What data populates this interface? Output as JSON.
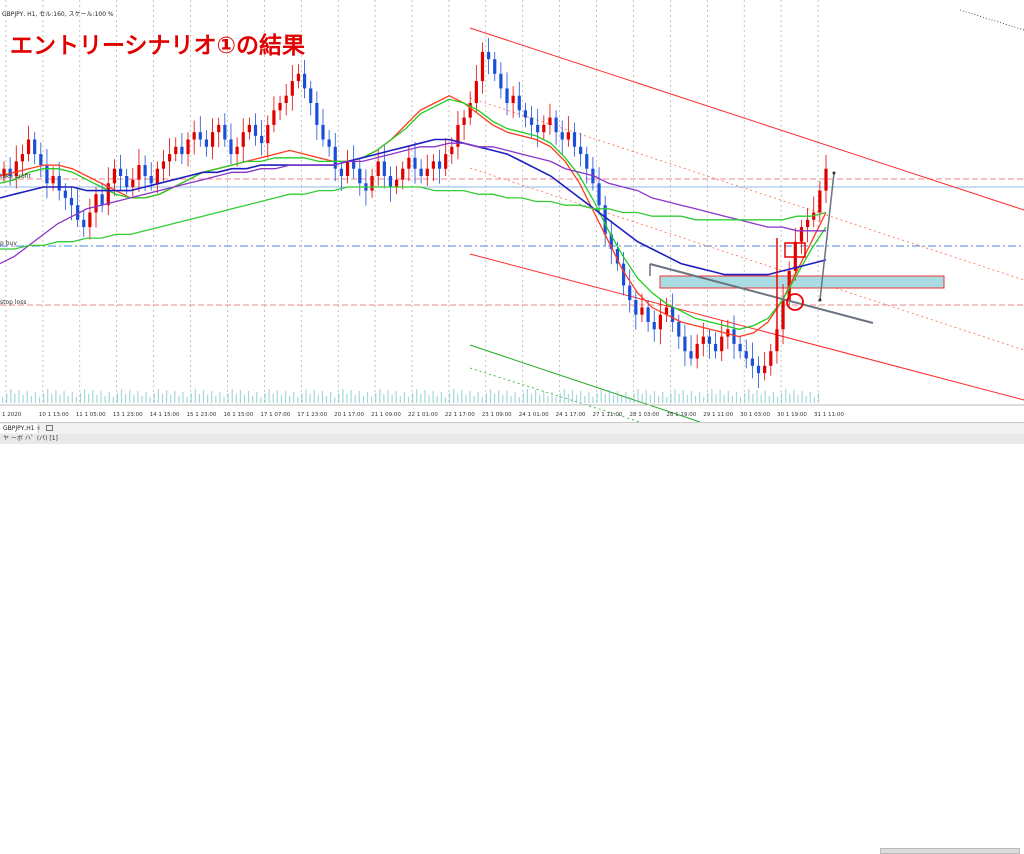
{
  "header": {
    "text": "GBPJPY, H1, セル:160, スケール:100 %"
  },
  "title": "エントリーシナリオ①の結果",
  "levels": {
    "take_profit": "take profit",
    "entry": "p buy",
    "stop_loss": "stop loss"
  },
  "tab": {
    "label": "GBPJPY,H1",
    "close": "×"
  },
  "status": {
    "text": "ヤ ーボ ハ゜(パ) [1]"
  },
  "colors": {
    "bull": "#e00000",
    "bear": "#1a4fd8",
    "ma_fast": "#ff3b1f",
    "ma_mid": "#22cc22",
    "ma_slow": "#1f1fbf",
    "ma_slower": "#8a35c8",
    "ma_long": "#33cc33",
    "channel": "#ff2a2a",
    "zone_fill": "#a9dde3",
    "zone_border": "#e33",
    "trendline": "#6b7280",
    "level_line": "#e88",
    "hline": "#4a8ad8"
  },
  "chart_data": {
    "type": "candlestick",
    "title": "エントリーシナリオ①の結果",
    "symbol": "GBPJPY",
    "timeframe": "H1",
    "x_ticks": [
      "1 2020",
      "10 1 13:00",
      "11 1 05:00",
      "13 1 23:00",
      "14 1 15:00",
      "15 1 23:00",
      "16 1 15:00",
      "17 1 07:00",
      "17 1 23:00",
      "20 1 17:00",
      "21 1 09:00",
      "22 1 01:00",
      "22 1 17:00",
      "23 1 09:00",
      "24 1 01:00",
      "24 1 17:00",
      "27 1 11:00",
      "28 1 03:00",
      "28 1 19:00",
      "29 1 11:00",
      "30 1 03:00",
      "30 1 19:00",
      "31 1 11:00"
    ],
    "y_range_relative": [
      0,
      100
    ],
    "candles_close_relative": [
      62,
      60,
      64,
      66,
      70,
      66,
      63,
      58,
      60,
      56,
      54,
      52,
      48,
      46,
      50,
      55,
      52,
      58,
      62,
      60,
      57,
      59,
      63,
      60,
      58,
      62,
      64,
      66,
      68,
      66,
      70,
      72,
      70,
      68,
      72,
      74,
      70,
      66,
      68,
      72,
      74,
      71,
      69,
      74,
      78,
      80,
      82,
      86,
      88,
      84,
      80,
      74,
      70,
      68,
      62,
      60,
      64,
      62,
      58,
      56,
      60,
      64,
      60,
      57,
      59,
      62,
      65,
      62,
      60,
      62,
      64,
      62,
      66,
      68,
      74,
      76,
      80,
      86,
      94,
      92,
      88,
      84,
      80,
      82,
      78,
      76,
      74,
      72,
      74,
      76,
      72,
      70,
      72,
      68,
      66,
      62,
      58,
      52,
      44,
      40,
      36,
      30,
      26,
      22,
      24,
      20,
      18,
      22,
      24,
      20,
      16,
      12,
      10,
      14,
      16,
      14,
      12,
      16,
      18,
      14,
      12,
      10,
      8,
      6,
      8,
      12,
      18,
      26,
      34,
      42,
      46,
      48,
      50,
      56,
      62
    ],
    "moving_averages": [
      {
        "id": "ma_fast",
        "values": [
          60,
          61,
          62,
          63,
          63,
          62,
          60,
          58,
          56,
          54,
          54,
          55,
          57,
          59,
          61,
          62,
          63,
          64,
          65,
          66,
          67,
          66,
          65,
          64,
          64,
          65,
          67,
          70,
          74,
          78,
          80,
          82,
          80,
          77,
          74,
          72,
          71,
          70,
          68,
          64,
          58,
          50,
          42,
          34,
          28,
          24,
          22,
          20,
          19,
          18,
          17,
          16,
          17,
          20,
          26,
          34,
          42,
          50
        ]
      },
      {
        "id": "ma_mid",
        "values": [
          58,
          59,
          61,
          62,
          62,
          61,
          59,
          57,
          55,
          54,
          54,
          55,
          57,
          59,
          61,
          62,
          63,
          64,
          64,
          65,
          65,
          65,
          64,
          64,
          64,
          65,
          67,
          70,
          73,
          77,
          79,
          81,
          80,
          78,
          75,
          73,
          72,
          71,
          69,
          65,
          60,
          53,
          45,
          38,
          32,
          28,
          25,
          23,
          21,
          20,
          19,
          18,
          19,
          21,
          26,
          33,
          40,
          46
        ]
      },
      {
        "id": "ma_slow",
        "values": [
          54,
          55,
          56,
          57,
          57,
          57,
          56,
          56,
          56,
          56,
          57,
          58,
          59,
          60,
          61,
          61,
          62,
          62,
          63,
          63,
          63,
          63,
          63,
          63,
          64,
          65,
          66,
          67,
          68,
          69,
          70,
          70,
          69,
          68,
          67,
          66,
          64,
          62,
          60,
          57,
          54,
          51,
          48,
          45,
          42,
          40,
          38,
          36,
          35,
          34,
          33,
          33,
          33,
          33,
          34,
          35,
          36,
          37
        ]
      },
      {
        "id": "ma_slower",
        "values": [
          36,
          38,
          41,
          44,
          47,
          49,
          51,
          52,
          53,
          54,
          55,
          56,
          57,
          58,
          59,
          60,
          61,
          61,
          62,
          62,
          63,
          63,
          63,
          63,
          64,
          64,
          65,
          66,
          67,
          68,
          68,
          69,
          69,
          68,
          68,
          67,
          66,
          65,
          64,
          62,
          61,
          60,
          58,
          57,
          56,
          54,
          53,
          52,
          51,
          50,
          49,
          48,
          47,
          46,
          46,
          45,
          45,
          45
        ]
      },
      {
        "id": "ma_long",
        "values": [
          40,
          40,
          41,
          41,
          42,
          42,
          43,
          43,
          44,
          44,
          45,
          46,
          47,
          48,
          49,
          50,
          51,
          52,
          53,
          54,
          55,
          55,
          56,
          56,
          57,
          57,
          57,
          57,
          57,
          57,
          56,
          56,
          56,
          55,
          55,
          54,
          54,
          53,
          53,
          52,
          52,
          51,
          51,
          50,
          50,
          49,
          49,
          49,
          48,
          48,
          48,
          48,
          48,
          48,
          48,
          49,
          49,
          50
        ]
      }
    ],
    "annotations": [
      "take profit",
      "p buy",
      "stop loss"
    ]
  }
}
